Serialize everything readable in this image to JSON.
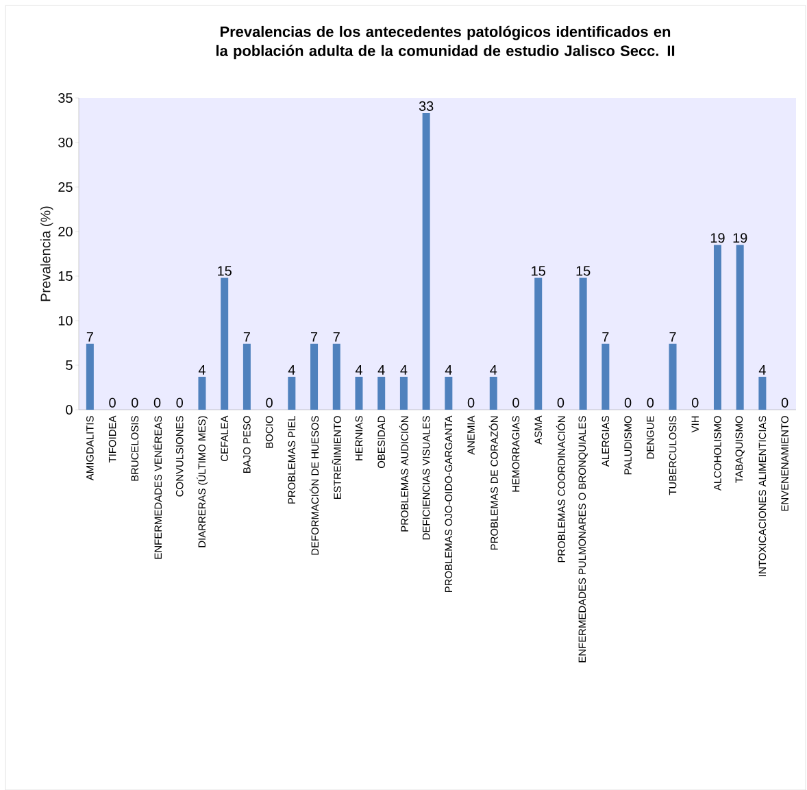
{
  "chart_data": {
    "type": "bar",
    "title": "Prevalencias de los antecedentes patológicos identificados en la población adulta de la comunidad de estudio Jalisco Secc. II",
    "ylabel": "Prevalencia (%)",
    "categories": [
      "AMIGDALITIS",
      "TIFOIDEA",
      "BRUCELOSIS",
      "ENFERMEDADES VENÉREAS",
      "CONVULSIONES",
      "DIARRERAS (ÚLTIMO MES)",
      "CEFALEA",
      "BAJO PESO",
      "BOCIO",
      "PROBLEMAS PIEL",
      "DEFORMACIÓN DE HUESOS",
      "ESTREÑIMIENTO",
      "HERNIAS",
      "OBESIDAD",
      "PROBLEMAS AUDICIÓN",
      "DEFICIENCIAS VISUALES",
      "PROBLEMAS OJO-OIDO-GARGANTA",
      "ANEMIA",
      "PROBLEMAS DE CORAZÓN",
      "HEMORRAGIAS",
      "ASMA",
      "PROBLEMAS COORDINACIÓN",
      "ENFERMEDADES PULMONARES O BRONQUIALES",
      "ALERGIAS",
      "PALUDISMO",
      "DENGUE",
      "TUBERCULOSIS",
      "VIH",
      "ALCOHOLISMO",
      "TABAQUISMO",
      "INTOXICACIONES ALIMENTICIAS",
      "ENVENENAMIENTO"
    ],
    "values": [
      7.4,
      0,
      0,
      0,
      0,
      3.7,
      14.8,
      7.4,
      0,
      3.7,
      7.4,
      7.4,
      3.7,
      3.7,
      3.7,
      33.3,
      3.7,
      0,
      3.7,
      0,
      14.8,
      0,
      14.8,
      7.4,
      0,
      0,
      7.4,
      0,
      18.5,
      18.5,
      3.7,
      0
    ],
    "value_labels": [
      "7",
      "0",
      "0",
      "0",
      "0",
      "4",
      "15",
      "7",
      "0",
      "4",
      "7",
      "7",
      "4",
      "4",
      "4",
      "33",
      "4",
      "0",
      "4",
      "0",
      "15",
      "0",
      "15",
      "7",
      "0",
      "0",
      "7",
      "0",
      "19",
      "19",
      "4",
      "0"
    ],
    "color": "#4f81bd",
    "ylim": [
      0,
      35
    ],
    "yticks": [
      0,
      5,
      10,
      15,
      20,
      25,
      30,
      35
    ]
  }
}
